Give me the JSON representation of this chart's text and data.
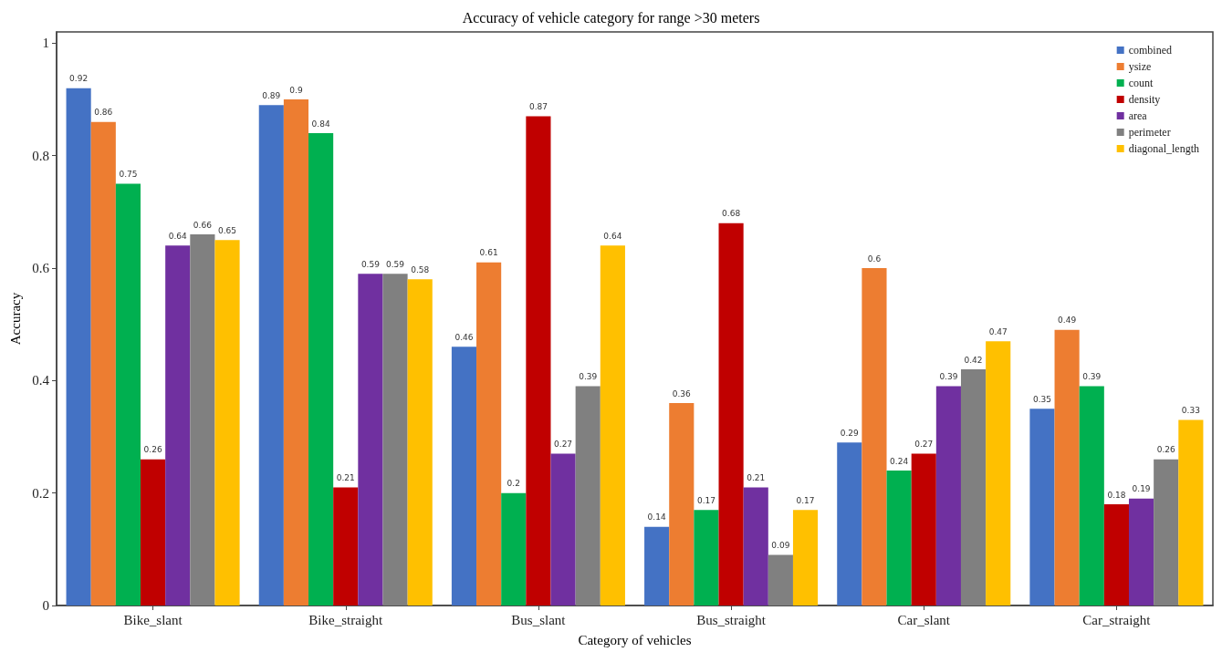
{
  "chart_data": {
    "type": "bar",
    "title": "Accuracy of vehicle category for range >30 meters",
    "xlabel": "Category of vehicles",
    "ylabel": "Accuracy",
    "categories": [
      "Bike_slant",
      "Bike_straight",
      "Bus_slant",
      "Bus_straight",
      "Car_slant",
      "Car_straight"
    ],
    "series": [
      {
        "name": "combined",
        "color": "#4472c4",
        "values": [
          0.92,
          0.89,
          0.46,
          0.14,
          0.29,
          0.35
        ]
      },
      {
        "name": "ysize",
        "color": "#ed7d31",
        "values": [
          0.86,
          0.9,
          0.61,
          0.36,
          0.6,
          0.49
        ]
      },
      {
        "name": "count",
        "color": "#00b050",
        "values": [
          0.75,
          0.84,
          0.2,
          0.17,
          0.24,
          0.39
        ]
      },
      {
        "name": "density",
        "color": "#c00000",
        "values": [
          0.26,
          0.21,
          0.87,
          0.68,
          0.27,
          0.18
        ]
      },
      {
        "name": "area",
        "color": "#7030a0",
        "values": [
          0.64,
          0.59,
          0.27,
          0.21,
          0.39,
          0.19
        ]
      },
      {
        "name": "perimeter",
        "color": "#808080",
        "values": [
          0.66,
          0.59,
          0.39,
          0.09,
          0.42,
          0.26
        ]
      },
      {
        "name": "diagonal_length",
        "color": "#ffc000",
        "values": [
          0.65,
          0.58,
          0.64,
          0.17,
          0.47,
          0.33
        ]
      }
    ],
    "ylim": [
      0,
      1.02
    ],
    "yticks": [
      0,
      0.2,
      0.4,
      0.6,
      0.8,
      1
    ],
    "grid": false,
    "legend": "top right",
    "data_labels": true
  }
}
